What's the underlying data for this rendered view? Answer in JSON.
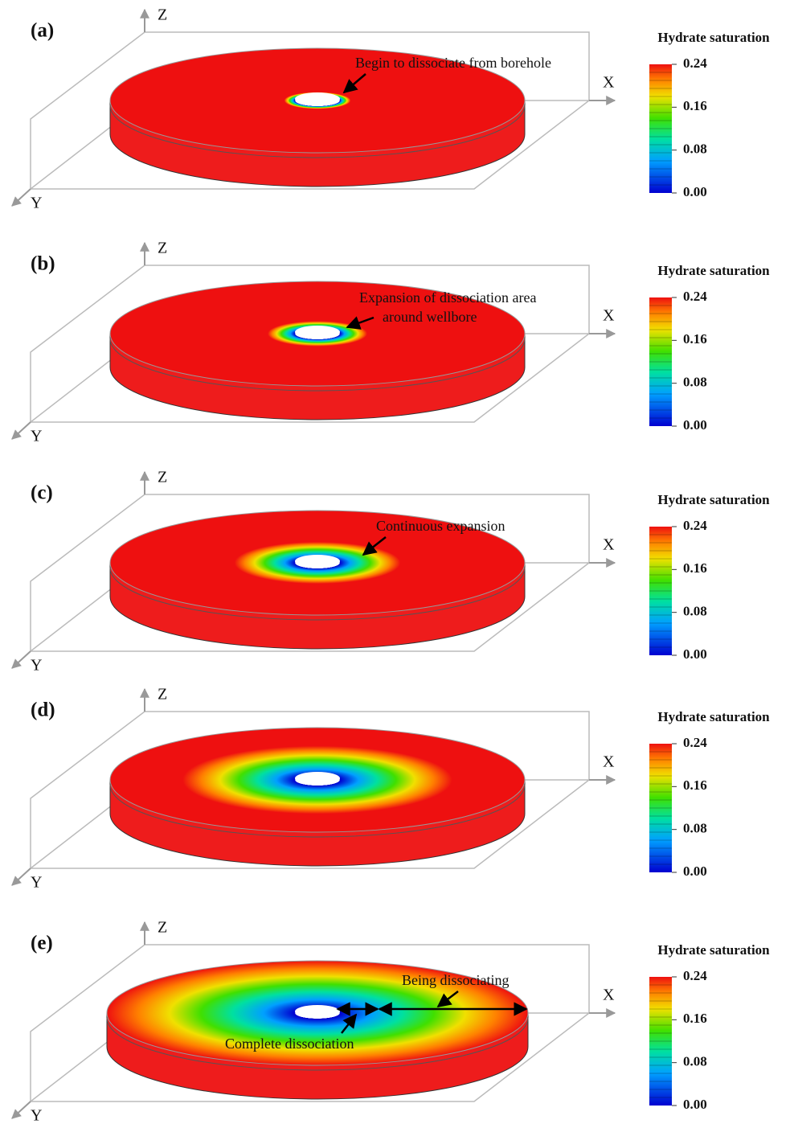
{
  "panels": [
    {
      "label": "(a)",
      "axes": {
        "x": "X",
        "y": "Y",
        "z": "Z"
      },
      "annotations": [
        "Begin to dissociate from borehole"
      ],
      "colorbar": {
        "title": "Hydrate saturation",
        "lim": [
          0,
          0.24
        ],
        "ticks": [
          0.24,
          0.16,
          0.08,
          {
            "value": 0,
            "label": "0.00"
          }
        ]
      }
    },
    {
      "label": "(b)",
      "axes": {
        "x": "X",
        "y": "Y",
        "z": "Z"
      },
      "annotations": [
        "Expansion of dissociation area",
        "around wellbore"
      ],
      "colorbar": {
        "title": "Hydrate saturation",
        "lim": [
          0,
          0.24
        ],
        "ticks": [
          0.24,
          0.16,
          0.08,
          {
            "value": 0,
            "label": "0.00"
          }
        ]
      }
    },
    {
      "label": "(c)",
      "axes": {
        "x": "X",
        "y": "Y",
        "z": "Z"
      },
      "annotations": [
        "Continuous expansion"
      ],
      "colorbar": {
        "title": "Hydrate saturation",
        "lim": [
          0,
          0.24
        ],
        "ticks": [
          0.24,
          0.16,
          0.08,
          {
            "value": 0,
            "label": "0.00"
          }
        ]
      }
    },
    {
      "label": "(d)",
      "axes": {
        "x": "X",
        "y": "Y",
        "z": "Z"
      },
      "annotations": [],
      "colorbar": {
        "title": "Hydrate saturation",
        "lim": [
          0,
          0.24
        ],
        "ticks": [
          0.24,
          0.16,
          0.08,
          {
            "value": 0,
            "label": "0.00"
          }
        ]
      }
    },
    {
      "label": "(e)",
      "axes": {
        "x": "X",
        "y": "Y",
        "z": "Z"
      },
      "annotations": [
        "Being dissociating",
        "Complete dissociation"
      ],
      "colorbar": {
        "title": "Hydrate saturation",
        "lim": [
          0,
          0.24
        ],
        "ticks": [
          0.24,
          0.16,
          0.08,
          {
            "value": 0,
            "label": "0.00"
          }
        ]
      }
    }
  ]
}
